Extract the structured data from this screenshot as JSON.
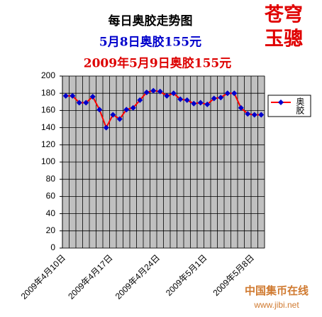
{
  "chart_data": {
    "type": "line",
    "title": "每日奥胶走势图",
    "subtitles": [
      "5月8日奥胶155元",
      "2009年5月9日奥胶155元"
    ],
    "categories": [
      "2009年4月10日",
      null,
      null,
      null,
      null,
      null,
      null,
      "2009年4月17日",
      null,
      null,
      null,
      null,
      null,
      null,
      "2009年4月24日",
      null,
      null,
      null,
      null,
      null,
      null,
      "2009年5月1日",
      null,
      null,
      null,
      null,
      null,
      null,
      "2009年5月8日",
      null
    ],
    "series": [
      {
        "name": "奥胶",
        "color": "#ff0000",
        "marker_color": "#0000cc",
        "values": [
          177,
          177,
          169,
          169,
          176,
          161,
          140,
          155,
          150,
          161,
          163,
          172,
          181,
          183,
          182,
          177,
          180,
          173,
          172,
          168,
          169,
          167,
          174,
          175,
          180,
          180,
          163,
          156,
          155,
          155
        ]
      }
    ],
    "ylim": [
      0,
      200
    ],
    "yticks": [
      0,
      20,
      40,
      60,
      80,
      100,
      120,
      140,
      160,
      180,
      200
    ],
    "grid": true,
    "legend": "right"
  },
  "stamp": [
    "苍穹",
    "玉骢"
  ],
  "watermark": {
    "name": "中国集币在线",
    "url": "www.jibi.net"
  }
}
